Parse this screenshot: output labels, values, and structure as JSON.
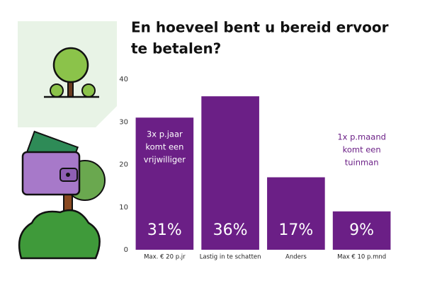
{
  "chart_data": {
    "type": "bar",
    "title": [
      "En hoeveel bent u bereid ervoor",
      "te betalen?"
    ],
    "categories": [
      "Max. € 20 p.jr",
      "Lastig in te schatten",
      "Anders",
      "Max € 10 p.mnd"
    ],
    "values": [
      31,
      36,
      17,
      9
    ],
    "value_labels": [
      "31%",
      "36%",
      "17%",
      "9%"
    ],
    "color": "#6b1f86",
    "ylim": [
      0,
      40
    ],
    "yticks": [
      0,
      10,
      20,
      30,
      40
    ],
    "grid": false,
    "annotations": [
      [
        "3x p.jaar",
        "komt een",
        "vrijwilliger"
      ],
      [
        "1x p.maand",
        "komt een",
        "tuinman"
      ]
    ]
  }
}
